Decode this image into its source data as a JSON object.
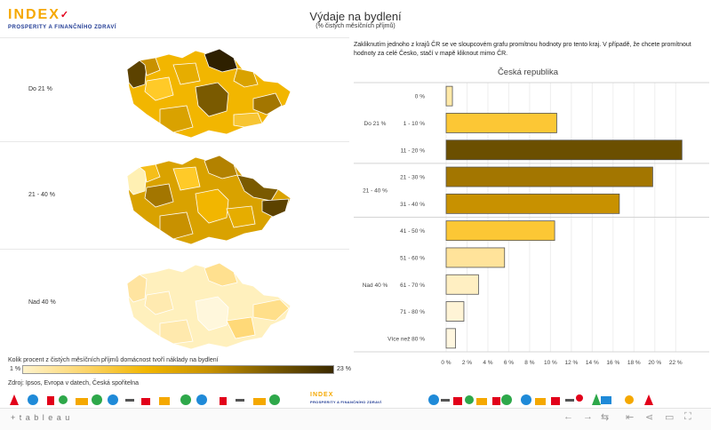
{
  "header": {
    "logo_word": "INDEX",
    "logo_sub": "PROSPERITY A FINANČNÍHO ZDRAVÍ",
    "title": "Výdaje na bydlení",
    "subtitle": "(% čistých měsíčních příjmů)"
  },
  "maps": {
    "rows": [
      {
        "label": "Do 21 %"
      },
      {
        "label": "21 - 40 %"
      },
      {
        "label": "Nad 40 %"
      }
    ],
    "legend_title": "Kolik procent z čistých měsíčních příjmů domácnost tvoří náklady na bydlení",
    "legend_min": "1 %",
    "legend_max": "23 %",
    "source": "Zdroj: Ipsos, Evropa v datech, Česká spořitelna"
  },
  "instruction": "Zakliknutím jednoho z krajů ČR se ve sloupcovém grafu promítnou hodnoty pro tento kraj. V případě, že chcete promítnout hodnoty za celé Česko, stačí v mapě kliknout mimo ČR.",
  "footer": {
    "brand": "+ t a b l e a u"
  },
  "colors": {
    "accent": "#f5a800",
    "brand_blue": "#1f3a93",
    "bar_light": "#fcc735",
    "bar_mid": "#c89100",
    "bar_dark": "#6b4f00"
  },
  "chart_data": {
    "type": "bar",
    "orientation": "horizontal",
    "title": "Česká republika",
    "groups": [
      {
        "name": "Do 21 %",
        "categories": [
          "0 %",
          "1 - 10 %",
          "11 - 20 %"
        ],
        "values": [
          0.6,
          10.6,
          22.6
        ]
      },
      {
        "name": "21 - 40 %",
        "categories": [
          "21 - 30 %",
          "31 - 40 %"
        ],
        "values": [
          19.8,
          16.6
        ]
      },
      {
        "name": "Nad 40 %",
        "categories": [
          "41 - 50 %",
          "51 - 60 %",
          "61 - 70 %",
          "71 - 80 %",
          "Více než 80 %"
        ],
        "values": [
          10.4,
          5.6,
          3.1,
          1.7,
          0.9
        ]
      }
    ],
    "bar_colors": [
      "#ffe9a8",
      "#fcc735",
      "#6b4f00",
      "#a37600",
      "#c89100",
      "#fcc735",
      "#ffe39a",
      "#ffefc2",
      "#fff4d6",
      "#fff7e0"
    ],
    "x_ticks": [
      "0 %",
      "2 %",
      "4 %",
      "6 %",
      "8 %",
      "10 %",
      "12 %",
      "14 %",
      "16 %",
      "18 %",
      "20 %",
      "22 %"
    ],
    "xlim": [
      0,
      23
    ],
    "grid": true
  }
}
